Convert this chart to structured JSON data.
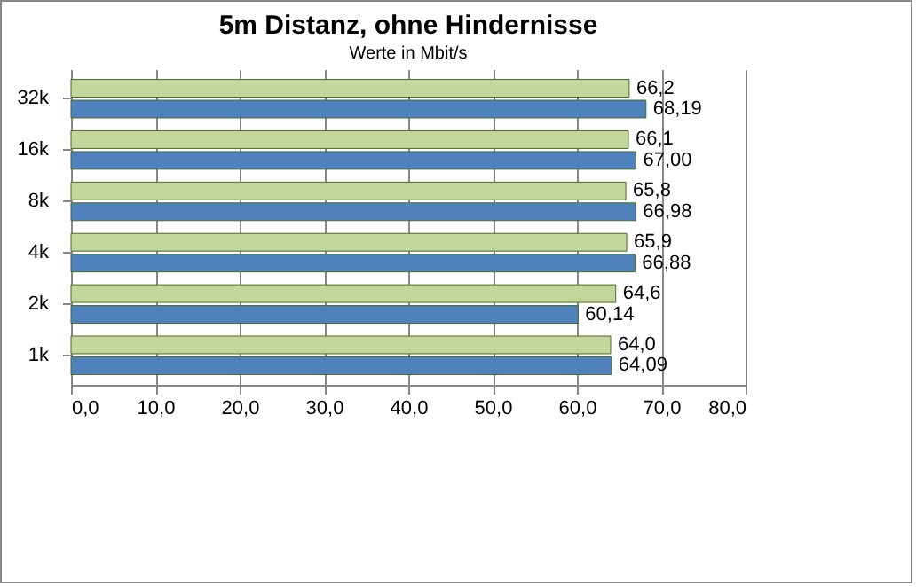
{
  "chart_data": {
    "type": "bar",
    "orientation": "horizontal",
    "title": "5m Distanz, ohne Hindernisse",
    "subtitle": "Werte in Mbit/s",
    "categories": [
      "32k",
      "16k",
      "8k",
      "4k",
      "2k",
      "1k"
    ],
    "series": [
      {
        "color": "#c3d69b",
        "values": [
          66.2,
          66.1,
          65.8,
          65.9,
          64.6,
          64.0
        ],
        "value_labels": [
          "66,2",
          "66,1",
          "65,8",
          "65,9",
          "64,6",
          "64,0"
        ]
      },
      {
        "color": "#4f81bd",
        "values": [
          68.19,
          67.0,
          66.98,
          66.88,
          60.14,
          64.09
        ],
        "value_labels": [
          "68,19",
          "67,00",
          "66,98",
          "66,88",
          "60,14",
          "64,09"
        ]
      }
    ],
    "xlim": [
      0,
      80
    ],
    "xticks": [
      {
        "value": 0,
        "label": "0,0"
      },
      {
        "value": 10,
        "label": "10,0"
      },
      {
        "value": 20,
        "label": "20,0"
      },
      {
        "value": 30,
        "label": "30,0"
      },
      {
        "value": 40,
        "label": "40,0"
      },
      {
        "value": 50,
        "label": "50,0"
      },
      {
        "value": 60,
        "label": "60,0"
      },
      {
        "value": 70,
        "label": "70,0"
      },
      {
        "value": 80,
        "label": "80,0"
      }
    ],
    "grid": "x"
  }
}
